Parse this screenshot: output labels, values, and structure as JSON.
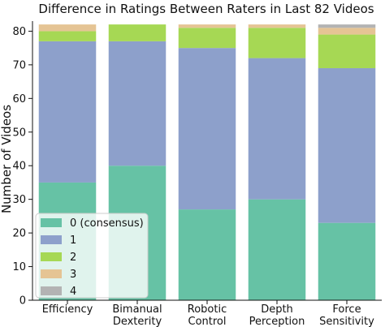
{
  "chart_data": {
    "type": "bar",
    "stacked": true,
    "title": "Difference in Ratings Between Raters in Last 82 Videos",
    "xlabel": "",
    "ylabel": "Number of Videos",
    "ylim": [
      0,
      83
    ],
    "yticks": [
      0,
      10,
      20,
      30,
      40,
      50,
      60,
      70,
      80
    ],
    "grid": false,
    "legend_placement": "lower-left",
    "categories": [
      [
        "Efficiency"
      ],
      [
        "Bimanual",
        "Dexterity"
      ],
      [
        "Robotic",
        "Control"
      ],
      [
        "Depth",
        "Perception"
      ],
      [
        "Force",
        "Sensitivity"
      ]
    ],
    "series": [
      {
        "name": "0 (consensus)",
        "color": "#66c2a5",
        "values": [
          35,
          40,
          27,
          30,
          23
        ]
      },
      {
        "name": "1",
        "color": "#8da0cb",
        "values": [
          42,
          37,
          48,
          42,
          46
        ]
      },
      {
        "name": "2",
        "color": "#a6d854",
        "values": [
          3,
          5,
          6,
          9,
          10
        ]
      },
      {
        "name": "3",
        "color": "#e5c494",
        "values": [
          2,
          0,
          1,
          1,
          2
        ]
      },
      {
        "name": "4",
        "color": "#b3b3b3",
        "values": [
          0,
          0,
          0,
          0,
          1
        ]
      }
    ]
  }
}
